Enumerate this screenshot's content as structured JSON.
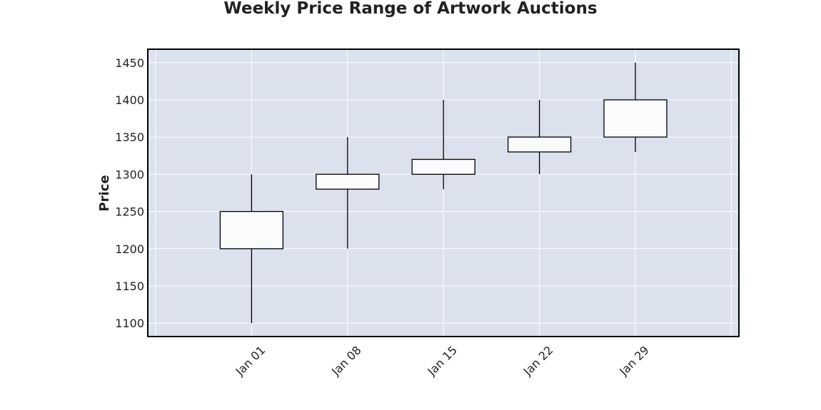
{
  "chart_data": {
    "type": "candlestick",
    "title": "Weekly Price Range of Artwork Auctions",
    "xlabel": "",
    "ylabel": "Price",
    "ylim": [
      1082,
      1468
    ],
    "yticks": [
      1100,
      1150,
      1200,
      1250,
      1300,
      1350,
      1400,
      1450
    ],
    "grid": true,
    "colors": {
      "plot_bg": "#dce1ee",
      "grid": "#ffffff",
      "body": "#fafbfd",
      "edge": "#000000"
    },
    "candles": [
      {
        "date": "Jan 01",
        "open": 1200,
        "high": 1300,
        "low": 1100,
        "close": 1250
      },
      {
        "date": "Jan 08",
        "open": 1280,
        "high": 1350,
        "low": 1200,
        "close": 1300
      },
      {
        "date": "Jan 15",
        "open": 1300,
        "high": 1400,
        "low": 1280,
        "close": 1320
      },
      {
        "date": "Jan 22",
        "open": 1330,
        "high": 1400,
        "low": 1300,
        "close": 1350
      },
      {
        "date": "Jan 29",
        "open": 1350,
        "high": 1450,
        "low": 1330,
        "close": 1400
      }
    ]
  }
}
